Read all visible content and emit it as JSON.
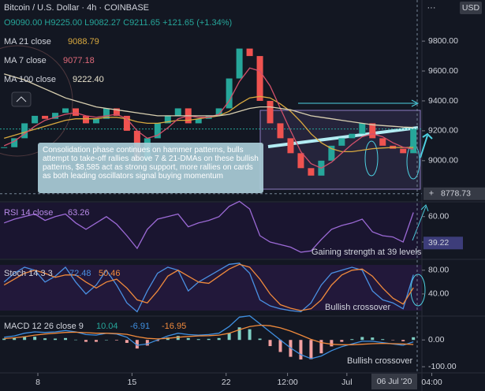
{
  "toolbar": {
    "currency": "USD"
  },
  "header": {
    "title": "Bitcoin / U.S. Dollar · 4h · COINBASE",
    "open": "O9090.00",
    "high": "H9225.00",
    "low": "L9082.27",
    "close": "C9211.65",
    "change": "+121.65 (+1.34%)"
  },
  "annotation": "Consolidation phase continues on hammer patterns, bulls attempt to take-off rallies above 7 & 21-DMAs on these bullish patterns, $8,585 act as strong support, more rallies on cards as both leading oscillators signal buying momentum",
  "crosshair_date": "06 Jul '20",
  "chart_data": [
    {
      "type": "candlestick",
      "x": [
        0,
        1,
        2,
        3,
        4,
        5,
        6,
        7,
        8,
        9,
        10,
        11,
        12,
        13,
        14,
        15,
        16,
        17,
        18,
        19,
        20,
        21,
        22,
        23,
        24,
        25,
        26,
        27,
        28,
        29,
        30,
        31,
        32,
        33,
        34,
        35,
        36,
        37,
        38,
        39,
        40
      ],
      "xlim": [
        -0.4,
        47
      ],
      "xticks": [
        {
          "value": 3.3,
          "label": "8"
        },
        {
          "value": 12.5,
          "label": "15"
        },
        {
          "value": 21.7,
          "label": "22"
        },
        {
          "value": 27.7,
          "label": "12:00"
        },
        {
          "value": 33.5,
          "label": "Jul"
        },
        {
          "value": 41.8,
          "label": "04:00"
        }
      ],
      "ylim": [
        8730,
        10075
      ],
      "yticks": [
        {
          "value": 9800,
          "label": "9800.00"
        },
        {
          "value": 9600,
          "label": "9600.00"
        },
        {
          "value": 9400,
          "label": "9400.00"
        },
        {
          "value": 9200,
          "label": "9200.00"
        },
        {
          "value": 9000,
          "label": "9000.00"
        }
      ],
      "up_color": "#26a69a",
      "down_color": "#ef5350",
      "values": [
        9090,
        9150,
        9250,
        9300,
        9280,
        9320,
        9350,
        9300,
        9250,
        9280,
        9350,
        9300,
        9200,
        9000,
        9150,
        9250,
        9300,
        9350,
        9250,
        9280,
        9300,
        9350,
        9550,
        9750,
        9700,
        9400,
        9250,
        9150,
        9050,
        8950,
        8900,
        9000,
        9100,
        9150,
        9180,
        9250,
        9150,
        9100,
        9080,
        9050,
        9211.65
      ],
      "crosshair_price": 8778.73,
      "series": [
        {
          "name": "MA 21 close",
          "color": "#d9a93f",
          "last_label": "9088.79",
          "values": [
            9150,
            9170,
            9190,
            9210,
            9230,
            9250,
            9270,
            9280,
            9280,
            9280,
            9290,
            9290,
            9280,
            9260,
            9250,
            9250,
            9260,
            9270,
            9270,
            9280,
            9290,
            9300,
            9330,
            9380,
            9420,
            9430,
            9420,
            9380,
            9330,
            9260,
            9180,
            9120,
            9080,
            9060,
            9060,
            9070,
            9080,
            9085,
            9088,
            9088,
            9088.79
          ]
        },
        {
          "name": "MA 7 close",
          "color": "#d2506a",
          "last_label": "9077.18",
          "values": [
            9100,
            9130,
            9180,
            9230,
            9270,
            9290,
            9310,
            9320,
            9300,
            9290,
            9300,
            9310,
            9280,
            9200,
            9150,
            9170,
            9220,
            9280,
            9300,
            9290,
            9290,
            9310,
            9400,
            9530,
            9620,
            9600,
            9500,
            9350,
            9200,
            9060,
            8980,
            8950,
            8990,
            9050,
            9110,
            9160,
            9180,
            9160,
            9120,
            9090,
            9077.18
          ]
        },
        {
          "name": "MA 100 close",
          "color": "#d8cfb0",
          "last_label": "9222.40",
          "values": [
            9580,
            9560,
            9540,
            9510,
            9480,
            9450,
            9420,
            9400,
            9380,
            9360,
            9350,
            9340,
            9330,
            9320,
            9310,
            9300,
            9300,
            9300,
            9300,
            9300,
            9300,
            9300,
            9310,
            9330,
            9350,
            9360,
            9360,
            9350,
            9340,
            9320,
            9300,
            9290,
            9280,
            9270,
            9260,
            9250,
            9240,
            9235,
            9230,
            9225,
            9222.4
          ]
        }
      ]
    },
    {
      "type": "line",
      "title": "RSI 14 close",
      "ylim": [
        27,
        71
      ],
      "yticks": [
        {
          "value": 60,
          "label": "60.00"
        },
        {
          "value": 40,
          "label": "40.00"
        }
      ],
      "cursor_value": 39.22,
      "annotation": "Gaining strength at 39 levels",
      "series": [
        {
          "color": "#9c6ad6",
          "values": [
            55,
            58,
            60,
            62,
            57,
            60,
            62,
            55,
            50,
            55,
            60,
            54,
            45,
            35,
            50,
            58,
            60,
            62,
            52,
            55,
            57,
            60,
            68,
            72,
            66,
            45,
            40,
            38,
            36,
            32,
            33,
            42,
            50,
            53,
            55,
            58,
            48,
            45,
            44,
            40,
            63.26
          ]
        }
      ]
    },
    {
      "type": "line",
      "title": "Stoch 14 3 3",
      "ylim": [
        4,
        97
      ],
      "yticks": [
        {
          "value": 80,
          "label": "80.00"
        },
        {
          "value": 40,
          "label": "40.00"
        }
      ],
      "annotation": "Bullish crossover",
      "series": [
        {
          "color": "#4a90e2",
          "values": [
            60,
            75,
            85,
            80,
            60,
            70,
            85,
            60,
            40,
            55,
            80,
            55,
            25,
            10,
            45,
            75,
            85,
            80,
            45,
            60,
            70,
            80,
            90,
            92,
            75,
            30,
            20,
            15,
            12,
            10,
            25,
            55,
            75,
            80,
            85,
            80,
            45,
            30,
            25,
            15,
            72.48
          ]
        },
        {
          "color": "#f08a3c",
          "values": [
            55,
            65,
            75,
            80,
            75,
            68,
            72,
            72,
            60,
            50,
            60,
            65,
            50,
            30,
            25,
            45,
            70,
            80,
            70,
            60,
            58,
            70,
            82,
            90,
            85,
            65,
            40,
            22,
            16,
            12,
            15,
            30,
            55,
            72,
            80,
            82,
            70,
            50,
            33,
            23,
            50.46
          ]
        }
      ]
    },
    {
      "type": "macd",
      "title": "MACD 12 26 close 9",
      "ylim": [
        -120,
        86
      ],
      "yticks": [
        {
          "value": 0,
          "label": "0.00"
        },
        {
          "value": -100,
          "label": "-100.00"
        }
      ],
      "annotation": "Bullish crossover",
      "histogram": {
        "up_color": "#7fcfc4",
        "down_color": "#f2a0a0",
        "values": [
          5,
          7,
          13,
          12,
          6,
          5,
          7,
          1,
          -7,
          -7,
          0,
          -2,
          -11,
          -32,
          -21,
          -4,
          9,
          15,
          7,
          3,
          4,
          7,
          25,
          47,
          40,
          5,
          -23,
          -45,
          -63,
          -73,
          -72,
          -50,
          -24,
          -7,
          3,
          11,
          9,
          3,
          -1,
          -5,
          10.04
        ]
      },
      "series": [
        {
          "color": "#3f8fe0",
          "values": [
            10,
            15,
            25,
            30,
            28,
            30,
            35,
            30,
            20,
            18,
            25,
            22,
            10,
            -20,
            -15,
            0,
            15,
            25,
            20,
            18,
            20,
            25,
            50,
            85,
            90,
            60,
            30,
            0,
            -30,
            -55,
            -70,
            -60,
            -40,
            -25,
            -15,
            -5,
            -5,
            -10,
            -15,
            -20,
            -6.91
          ]
        },
        {
          "color": "#f08a3c",
          "values": [
            5,
            8,
            12,
            18,
            22,
            25,
            28,
            29,
            27,
            25,
            25,
            24,
            21,
            12,
            6,
            4,
            6,
            10,
            13,
            15,
            16,
            18,
            25,
            38,
            50,
            55,
            53,
            45,
            33,
            18,
            2,
            -10,
            -16,
            -18,
            -18,
            -16,
            -14,
            -13,
            -14,
            -15,
            -16.95
          ]
        }
      ]
    }
  ]
}
